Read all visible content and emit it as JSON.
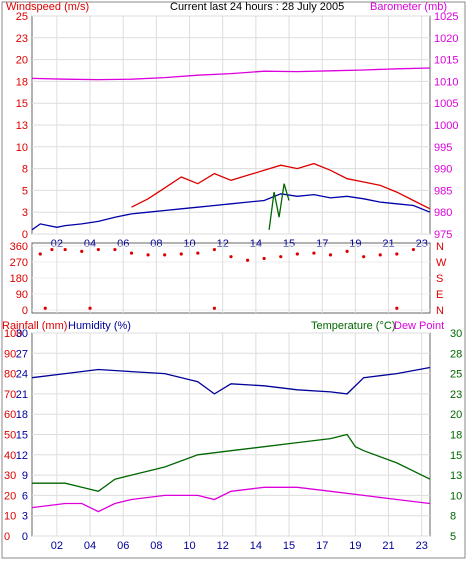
{
  "header": {
    "left_label": "Windspeed (m/s)",
    "center_label": "Current last 24 hours : 28 July 2005",
    "right_label": "Barometer (mb)"
  },
  "middle": {
    "left_ticks": [
      "360",
      "270",
      "180",
      "90",
      "0"
    ],
    "right_ticks": [
      "N",
      "W",
      "S",
      "E",
      "N"
    ]
  },
  "bottom_header": {
    "rainfall_label": "Rainfall (mm)",
    "humidity_label": "Humidity (%)",
    "temperature_label": "Temperature (°C)",
    "dewpoint_label": "Dew Point"
  },
  "colors": {
    "windspeed": "#dd0000",
    "wind_avg": "#0000aa",
    "barometer": "#dd00dd",
    "gust_green": "#006600",
    "humidity": "#000099",
    "temperature": "#006600",
    "dewpoint": "#dd00dd",
    "winddir": "#dd0000"
  },
  "chart_data": [
    {
      "type": "line",
      "x_ticks": [
        "02",
        "04",
        "06",
        "08",
        "10",
        "12",
        "14",
        "15",
        "17",
        "19",
        "21",
        "23"
      ],
      "y_left_ticks": [
        "0",
        "3",
        "5",
        "8",
        "10",
        "13",
        "15",
        "18",
        "20",
        "23",
        "25"
      ],
      "y_left_range": [
        0,
        26
      ],
      "y_right_ticks": [
        "975",
        "980",
        "985",
        "990",
        "995",
        "1000",
        "1005",
        "1010",
        "1015",
        "1020",
        "1025"
      ],
      "y_right_range": [
        973.5,
        1028
      ],
      "series": [
        {
          "key": "barometer",
          "axis": "right",
          "points": [
            [
              0,
              1012.4
            ],
            [
              2,
              1012.2
            ],
            [
              4,
              1012.1
            ],
            [
              6,
              1012.2
            ],
            [
              8,
              1012.6
            ],
            [
              10,
              1013.2
            ],
            [
              12,
              1013.6
            ],
            [
              14,
              1014.2
            ],
            [
              16,
              1014.1
            ],
            [
              18,
              1014.3
            ],
            [
              20,
              1014.5
            ],
            [
              22,
              1014.8
            ],
            [
              24,
              1015.0
            ]
          ]
        },
        {
          "key": "wind_avg",
          "axis": "left",
          "points": [
            [
              0,
              0.5
            ],
            [
              0.5,
              1.2
            ],
            [
              1,
              1.0
            ],
            [
              1.5,
              0.8
            ],
            [
              2,
              1.0
            ],
            [
              3,
              1.2
            ],
            [
              4,
              1.5
            ],
            [
              5,
              2.0
            ],
            [
              6,
              2.4
            ],
            [
              7,
              2.6
            ],
            [
              8,
              2.8
            ],
            [
              9,
              3.0
            ],
            [
              10,
              3.2
            ],
            [
              11,
              3.4
            ],
            [
              12,
              3.6
            ],
            [
              13,
              3.8
            ],
            [
              14,
              4.0
            ],
            [
              15,
              4.8
            ],
            [
              16,
              4.5
            ],
            [
              17,
              4.7
            ],
            [
              18,
              4.3
            ],
            [
              19,
              4.5
            ],
            [
              20,
              4.2
            ],
            [
              21,
              3.8
            ],
            [
              22,
              3.6
            ],
            [
              23,
              3.4
            ],
            [
              24,
              2.6
            ]
          ]
        },
        {
          "key": "windspeed",
          "axis": "left",
          "points": [
            [
              6,
              3.2
            ],
            [
              7,
              4.2
            ],
            [
              8,
              5.5
            ],
            [
              9,
              6.8
            ],
            [
              10,
              6.0
            ],
            [
              11,
              7.2
            ],
            [
              12,
              6.4
            ],
            [
              13,
              7.0
            ],
            [
              14,
              7.6
            ],
            [
              15,
              8.2
            ],
            [
              16,
              7.8
            ],
            [
              17,
              8.4
            ],
            [
              18,
              7.6
            ],
            [
              19,
              6.6
            ],
            [
              20,
              6.2
            ],
            [
              21,
              5.8
            ],
            [
              22,
              5.0
            ],
            [
              23,
              4.0
            ],
            [
              24,
              3.0
            ]
          ]
        },
        {
          "key": "gust_green",
          "axis": "left",
          "points": [
            [
              14.3,
              0.5
            ],
            [
              14.6,
              5.0
            ],
            [
              14.9,
              2.0
            ],
            [
              15.2,
              6.0
            ],
            [
              15.5,
              4.0
            ]
          ]
        }
      ]
    },
    {
      "type": "scatter",
      "y_range": [
        0,
        360
      ],
      "series": [
        {
          "key": "winddir",
          "points": [
            [
              0.5,
              315
            ],
            [
              1.2,
              340
            ],
            [
              2,
              340
            ],
            [
              3,
              330
            ],
            [
              4,
              340
            ],
            [
              5,
              340
            ],
            [
              6,
              320
            ],
            [
              7,
              310
            ],
            [
              8,
              310
            ],
            [
              9,
              315
            ],
            [
              10,
              320
            ],
            [
              11,
              340
            ],
            [
              12,
              300
            ],
            [
              13,
              280
            ],
            [
              14,
              290
            ],
            [
              15,
              300
            ],
            [
              16,
              315
            ],
            [
              17,
              320
            ],
            [
              18,
              310
            ],
            [
              19,
              330
            ],
            [
              20,
              300
            ],
            [
              21,
              310
            ],
            [
              22,
              315
            ],
            [
              23,
              340
            ],
            [
              0.8,
              10
            ],
            [
              3.5,
              10
            ],
            [
              11,
              10
            ],
            [
              22,
              10
            ]
          ]
        }
      ]
    },
    {
      "type": "line",
      "x_ticks": [
        "02",
        "04",
        "06",
        "08",
        "10",
        "12",
        "14",
        "15",
        "17",
        "19",
        "21",
        "23"
      ],
      "y_left_ticks": [
        "0",
        "10",
        "20",
        "30",
        "40",
        "50",
        "60",
        "70",
        "80",
        "90",
        "100"
      ],
      "y_left_range": [
        0,
        100
      ],
      "y_left2_ticks": [
        "0",
        "3",
        "6",
        "9",
        "12",
        "15",
        "18",
        "21",
        "24",
        "27",
        "30"
      ],
      "y_left2_range": [
        0,
        30
      ],
      "y_right_ticks": [
        "5",
        "8",
        "10",
        "13",
        "15",
        "18",
        "20",
        "23",
        "25",
        "28",
        "30"
      ],
      "y_right_range": [
        5,
        30
      ],
      "series": [
        {
          "key": "humidity",
          "axis": "left",
          "points": [
            [
              0,
              78
            ],
            [
              2,
              80
            ],
            [
              4,
              82
            ],
            [
              6,
              81
            ],
            [
              8,
              80
            ],
            [
              10,
              76
            ],
            [
              11,
              70
            ],
            [
              12,
              75
            ],
            [
              14,
              74
            ],
            [
              16,
              72
            ],
            [
              18,
              71
            ],
            [
              19,
              70
            ],
            [
              20,
              78
            ],
            [
              22,
              80
            ],
            [
              24,
              83
            ]
          ]
        },
        {
          "key": "temperature",
          "axis": "right",
          "points": [
            [
              0,
              11.5
            ],
            [
              2,
              11.5
            ],
            [
              3,
              11.0
            ],
            [
              4,
              10.5
            ],
            [
              5,
              12.0
            ],
            [
              6,
              12.5
            ],
            [
              8,
              13.5
            ],
            [
              10,
              15.0
            ],
            [
              12,
              15.5
            ],
            [
              14,
              16.0
            ],
            [
              16,
              16.5
            ],
            [
              18,
              17.0
            ],
            [
              19,
              17.5
            ],
            [
              19.5,
              16.0
            ],
            [
              20,
              15.5
            ],
            [
              22,
              14.0
            ],
            [
              24,
              12.0
            ]
          ]
        },
        {
          "key": "dewpoint",
          "axis": "right",
          "points": [
            [
              0,
              8.5
            ],
            [
              2,
              9.0
            ],
            [
              3,
              9.0
            ],
            [
              4,
              8.0
            ],
            [
              5,
              9.0
            ],
            [
              6,
              9.5
            ],
            [
              8,
              10.0
            ],
            [
              10,
              10.0
            ],
            [
              11,
              9.5
            ],
            [
              12,
              10.5
            ],
            [
              14,
              11.0
            ],
            [
              16,
              11.0
            ],
            [
              18,
              10.5
            ],
            [
              20,
              10.0
            ],
            [
              22,
              9.5
            ],
            [
              24,
              9.0
            ]
          ]
        }
      ]
    }
  ]
}
